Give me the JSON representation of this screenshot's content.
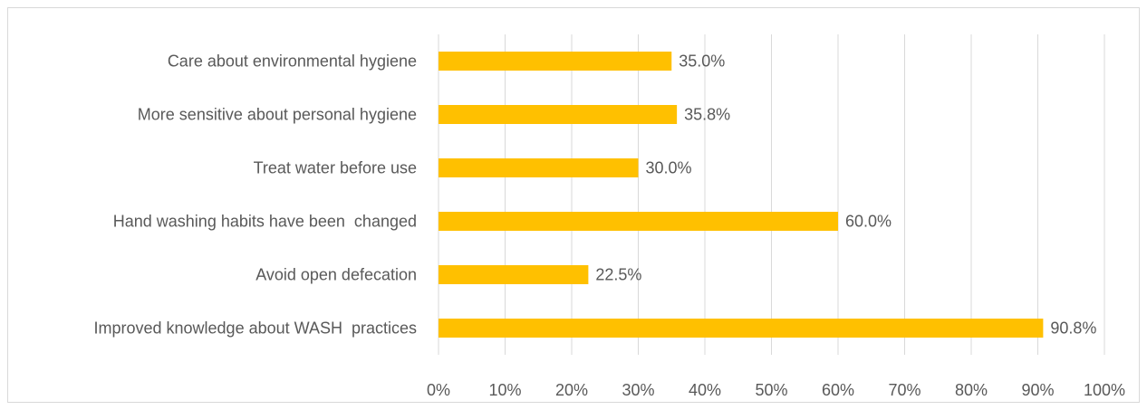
{
  "chart_data": {
    "type": "bar",
    "orientation": "horizontal",
    "categories": [
      "Care about environmental hygiene",
      "More sensitive about personal hygiene",
      "Treat water before use",
      "Hand washing habits have been  changed",
      "Avoid open defecation",
      "Improved knowledge about WASH  practices"
    ],
    "values": [
      35.0,
      35.8,
      30.0,
      60.0,
      22.5,
      90.8
    ],
    "value_labels": [
      "35.0%",
      "35.8%",
      "30.0%",
      "60.0%",
      "22.5%",
      "90.8%"
    ],
    "xlim": [
      0,
      100
    ],
    "x_ticks": [
      0,
      10,
      20,
      30,
      40,
      50,
      60,
      70,
      80,
      90,
      100
    ],
    "x_tick_labels": [
      "0%",
      "10%",
      "20%",
      "30%",
      "40%",
      "50%",
      "60%",
      "70%",
      "80%",
      "90%",
      "100%"
    ],
    "grid": true,
    "bar_color": "#FFC000",
    "grid_color": "#D9D9D9",
    "text_color": "#595959"
  }
}
